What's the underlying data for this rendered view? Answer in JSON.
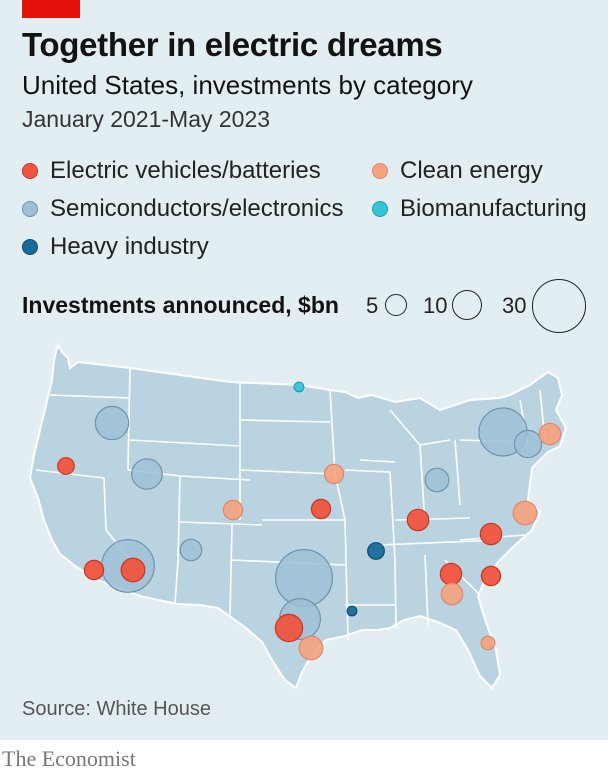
{
  "header": {
    "title": "Together in electric dreams",
    "subtitle": "United States, investments by category",
    "dates": "January 2021-May 2023"
  },
  "colors": {
    "brand_red": "#e3120b",
    "ev": "#f0553f",
    "clean": "#f5a27e",
    "semi": "#9dc0d6",
    "bio": "#35c4d8",
    "heavy": "#1a6b9a"
  },
  "legend": {
    "ev": "Electric vehicles/batteries",
    "clean": "Clean energy",
    "semi": "Semiconductors/electronics",
    "bio": "Biomanufacturing",
    "heavy": "Heavy industry"
  },
  "size_legend": {
    "title": "Investments announced, $bn",
    "values": [
      "5",
      "10",
      "30"
    ]
  },
  "map_points": [
    {
      "cat": "semi",
      "value": 12,
      "place": "Washington"
    },
    {
      "cat": "semi",
      "value": 10,
      "place": "Idaho"
    },
    {
      "cat": "ev",
      "value": 3,
      "place": "Oregon"
    },
    {
      "cat": "semi",
      "value": 30,
      "place": "Phoenix"
    },
    {
      "cat": "ev",
      "value": 6,
      "place": "Arizona"
    },
    {
      "cat": "ev",
      "value": 4,
      "place": "Southern California"
    },
    {
      "cat": "semi",
      "value": 5,
      "place": "New Mexico"
    },
    {
      "cat": "clean",
      "value": 4,
      "place": "Colorado"
    },
    {
      "cat": "semi",
      "value": 35,
      "place": "Texas North"
    },
    {
      "cat": "semi",
      "value": 18,
      "place": "Texas Central"
    },
    {
      "cat": "ev",
      "value": 8,
      "place": "Texas South"
    },
    {
      "cat": "clean",
      "value": 6,
      "place": "Gulf Coast"
    },
    {
      "cat": "clean",
      "value": 4,
      "place": "Kansas"
    },
    {
      "cat": "ev",
      "value": 4,
      "place": "Oklahoma"
    },
    {
      "cat": "heavy",
      "value": 3,
      "place": "Arkansas"
    },
    {
      "cat": "semi",
      "value": 6,
      "place": "Ohio"
    },
    {
      "cat": "semi",
      "value": 25,
      "place": "New York"
    },
    {
      "cat": "semi",
      "value": 8,
      "place": "Upstate New York"
    },
    {
      "cat": "clean",
      "value": 6,
      "place": "Maryland"
    },
    {
      "cat": "clean",
      "value": 5,
      "place": "Massachusetts"
    },
    {
      "cat": "ev",
      "value": 5,
      "place": "Kentucky"
    },
    {
      "cat": "ev",
      "value": 5,
      "place": "Tennessee"
    },
    {
      "cat": "ev",
      "value": 5,
      "place": "North Carolina"
    },
    {
      "cat": "clean",
      "value": 5,
      "place": "Georgia"
    },
    {
      "cat": "ev",
      "value": 4,
      "place": "South Carolina"
    },
    {
      "cat": "bio",
      "value": 1,
      "place": "Minnesota"
    },
    {
      "cat": "heavy",
      "value": 1,
      "place": "Louisiana"
    },
    {
      "cat": "clean",
      "value": 2,
      "place": "Florida"
    }
  ],
  "source": "Source: White House",
  "brand": "The Economist"
}
